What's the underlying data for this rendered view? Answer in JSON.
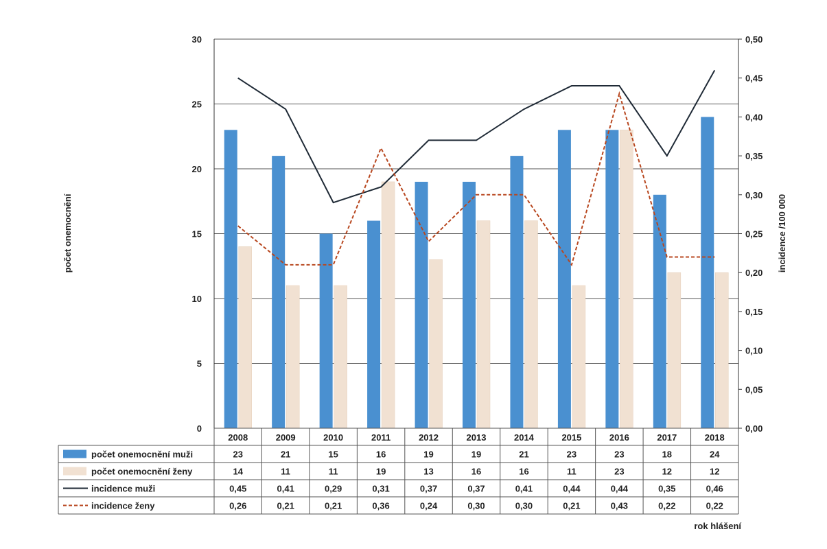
{
  "chart_data": {
    "type": "bar",
    "categories": [
      "2008",
      "2009",
      "2010",
      "2011",
      "2012",
      "2013",
      "2014",
      "2015",
      "2016",
      "2017",
      "2018"
    ],
    "series": [
      {
        "name": "počet onemocnění muži",
        "type": "bar",
        "axis": "left",
        "color": "#4a90d0",
        "values": [
          23,
          21,
          15,
          16,
          19,
          19,
          21,
          23,
          23,
          18,
          24
        ],
        "labels": [
          "23",
          "21",
          "15",
          "16",
          "19",
          "19",
          "21",
          "23",
          "23",
          "18",
          "24"
        ]
      },
      {
        "name": "počet onemocnění ženy",
        "type": "bar",
        "axis": "left",
        "color": "#f1e1d2",
        "values": [
          14,
          11,
          11,
          19,
          13,
          16,
          16,
          11,
          23,
          12,
          12
        ],
        "labels": [
          "14",
          "11",
          "11",
          "19",
          "13",
          "16",
          "16",
          "11",
          "23",
          "12",
          "12"
        ]
      },
      {
        "name": "incidence muži",
        "type": "line",
        "axis": "right",
        "color": "#1f2a36",
        "dash": false,
        "values": [
          0.45,
          0.41,
          0.29,
          0.31,
          0.37,
          0.37,
          0.41,
          0.44,
          0.44,
          0.35,
          0.46
        ],
        "labels": [
          "0,45",
          "0,41",
          "0,29",
          "0,31",
          "0,37",
          "0,37",
          "0,41",
          "0,44",
          "0,44",
          "0,35",
          "0,46"
        ]
      },
      {
        "name": "incidence ženy",
        "type": "line",
        "axis": "right",
        "color": "#b8471f",
        "dash": true,
        "values": [
          0.26,
          0.21,
          0.21,
          0.36,
          0.24,
          0.3,
          0.3,
          0.21,
          0.43,
          0.22,
          0.22
        ],
        "labels": [
          "0,26",
          "0,21",
          "0,21",
          "0,36",
          "0,24",
          "0,30",
          "0,30",
          "0,21",
          "0,43",
          "0,22",
          "0,22"
        ]
      }
    ],
    "ylabel": "počet onemocnění",
    "y2label": "incidence /100 000",
    "xlabel": "rok hlášení",
    "ylim": [
      0,
      30
    ],
    "y2lim": [
      0,
      0.5
    ],
    "yticks": [
      "0",
      "5",
      "10",
      "15",
      "20",
      "25",
      "30"
    ],
    "y2ticks": [
      "0,00",
      "0,05",
      "0,10",
      "0,15",
      "0,20",
      "0,25",
      "0,30",
      "0,35",
      "0,40",
      "0,45",
      "0,50"
    ],
    "grid": true,
    "legend": "data-table"
  }
}
